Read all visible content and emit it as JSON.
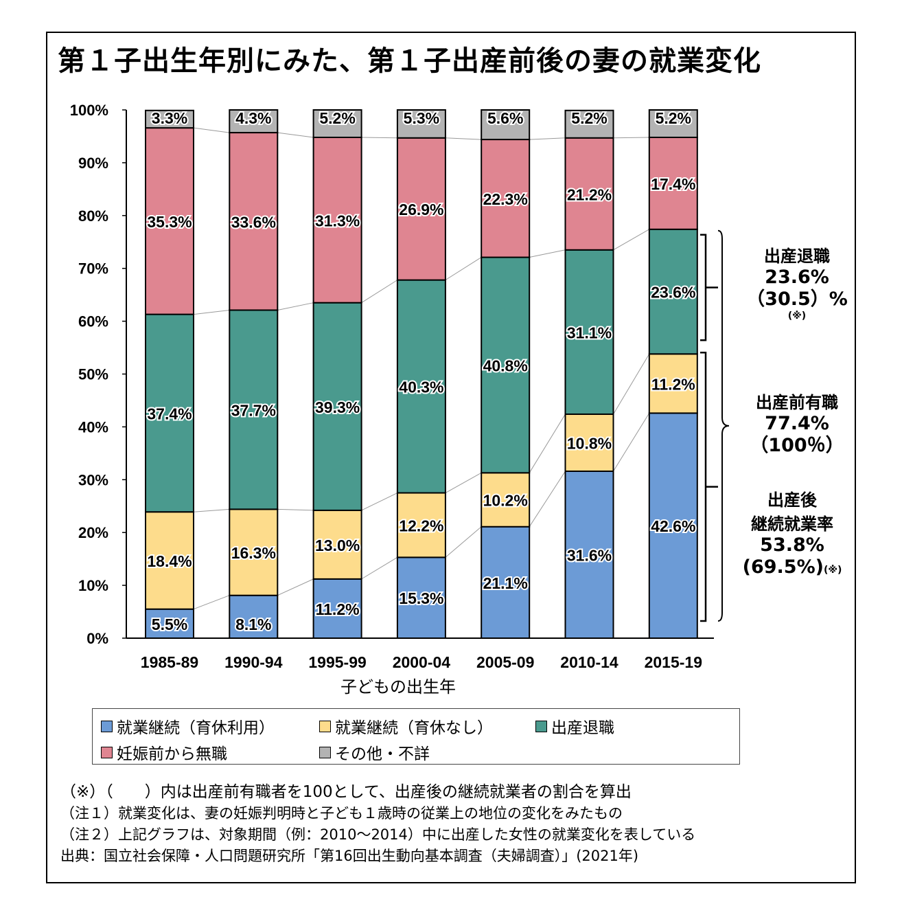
{
  "title": "第１子出生年別にみた、第１子出産前後の妻の就業変化",
  "chart_data": {
    "type": "bar",
    "stacked": true,
    "categories": [
      "1985-89",
      "1990-94",
      "1995-99",
      "2000-04",
      "2005-09",
      "2010-14",
      "2015-19"
    ],
    "series": [
      {
        "name": "就業継続（育休利用）",
        "color": "#6c9bd6",
        "values": [
          5.5,
          8.1,
          11.2,
          15.3,
          21.1,
          31.6,
          42.6
        ],
        "labels": [
          "5.5%",
          "8.1%",
          "11.2%",
          "15.3%",
          "21.1%",
          "31.6%",
          "42.6%"
        ]
      },
      {
        "name": "就業継続（育休なし）",
        "color": "#fddc8c",
        "values": [
          18.4,
          16.3,
          13.0,
          12.2,
          10.2,
          10.8,
          11.2
        ],
        "labels": [
          "18.4%",
          "16.3%",
          "13.0%",
          "12.2%",
          "10.2%",
          "10.8%",
          "11.2%"
        ]
      },
      {
        "name": "出産退職",
        "color": "#4a9a8e",
        "values": [
          37.4,
          37.7,
          39.3,
          40.3,
          40.8,
          31.1,
          23.6
        ],
        "labels": [
          "37.4%",
          "37.7%",
          "39.3%",
          "40.3%",
          "40.8%",
          "31.1%",
          "23.6%"
        ]
      },
      {
        "name": "妊娠前から無職",
        "color": "#df8591",
        "values": [
          35.3,
          33.6,
          31.3,
          26.9,
          22.3,
          21.2,
          17.4
        ],
        "labels": [
          "35.3%",
          "33.6%",
          "31.3%",
          "26.9%",
          "22.3%",
          "21.2%",
          "17.4%"
        ]
      },
      {
        "name": "その他・不詳",
        "color": "#b3b3b3",
        "values": [
          3.3,
          4.3,
          5.2,
          5.3,
          5.6,
          5.2,
          5.2
        ],
        "labels": [
          "3.3%",
          "4.3%",
          "5.2%",
          "5.3%",
          "5.6%",
          "5.2%",
          "5.2%"
        ]
      }
    ],
    "y_ticks": [
      "0%",
      "10%",
      "20%",
      "30%",
      "40%",
      "50%",
      "60%",
      "70%",
      "80%",
      "90%",
      "100%"
    ],
    "ylim": [
      0,
      100
    ],
    "xlabel": "子どもの出生年",
    "ylabel": "",
    "legend_position": "bottom"
  },
  "annotations": {
    "resign": {
      "label": "出産退職",
      "value": "23.6%",
      "alt": "（30.5）%",
      "note": "(※)"
    },
    "prebirth": {
      "label": "出産前有職",
      "value": "77.4%",
      "alt": "（100％）"
    },
    "continue": {
      "label1": "出産後",
      "label2": "継続就業率",
      "value": "53.8%",
      "alt": "(69.5%)",
      "note": "(※)"
    }
  },
  "notes": [
    "（※）（　　）内は出産前有職者を100として、出産後の継続就業者の割合を算出",
    "（注１）就業変化は、妻の妊娠判明時と子ども１歳時の従業上の地位の変化をみたもの",
    "（注２）上記グラフは、対象期間（例：2010～2014）中に出産した女性の就業変化を表している",
    "出典：国立社会保障・人口問題研究所「第16回出生動向基本調査（夫婦調査）」(2021年)"
  ]
}
